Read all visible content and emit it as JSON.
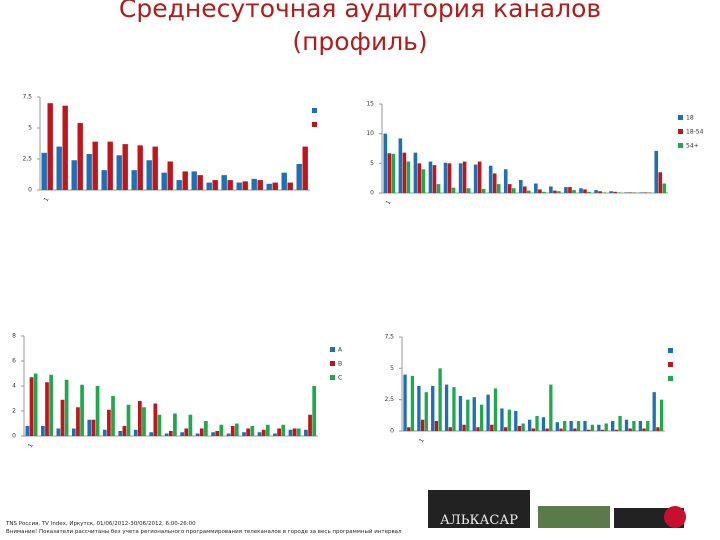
{
  "header": {
    "title": "Среднесуточная аудитория каналов",
    "subtitle": "(профиль)"
  },
  "chart_data": [
    {
      "type": "bar",
      "categories": [
        "1",
        null,
        null,
        null,
        null,
        null,
        null,
        null,
        null,
        null,
        null,
        null,
        null,
        null,
        null,
        null,
        null,
        null
      ],
      "series": [
        {
          "color": "#1f6fb5",
          "values": [
            3.0,
            3.5,
            2.4,
            2.9,
            1.6,
            2.8,
            1.6,
            2.4,
            1.4,
            0.8,
            1.5,
            0.6,
            1.2,
            0.6,
            0.9,
            0.5,
            1.4,
            2.1
          ]
        },
        {
          "color": "#c0161b",
          "values": [
            7.0,
            6.8,
            5.4,
            3.9,
            3.9,
            3.7,
            3.6,
            3.5,
            2.3,
            1.5,
            1.2,
            0.8,
            0.8,
            0.7,
            0.8,
            0.6,
            0.6,
            3.5
          ]
        }
      ],
      "ylim": [
        0,
        7.5
      ],
      "yticks": [
        0,
        {
          "value": 2.5,
          "label": "2,5"
        },
        5,
        {
          "value": 7.5,
          "label": "7,5"
        }
      ]
    },
    {
      "type": "bar",
      "categories": [
        "1",
        null,
        null,
        null,
        null,
        null,
        null,
        null,
        null,
        null,
        null,
        null,
        null,
        null,
        null,
        null,
        null,
        null,
        null
      ],
      "series": [
        {
          "name": "18",
          "color": "#1f6fb5",
          "values": [
            10,
            9.2,
            6.8,
            5.3,
            5.1,
            5.0,
            4.8,
            4.6,
            4.0,
            2.2,
            1.6,
            1.1,
            1.0,
            0.8,
            0.5,
            0.3,
            0.1,
            0.1,
            7.1
          ]
        },
        {
          "name": "18-54",
          "color": "#c0161b",
          "values": [
            6.7,
            6.8,
            5.0,
            4.7,
            5.0,
            5.3,
            5.3,
            3.3,
            1.5,
            1.1,
            0.6,
            0.4,
            1.0,
            0.6,
            0.3,
            0.2,
            0.1,
            0.1,
            3.5
          ]
        },
        {
          "name": "54+",
          "color": "#20a94c",
          "values": [
            6.6,
            5.3,
            4.0,
            1.5,
            0.9,
            0.8,
            0.7,
            1.5,
            0.8,
            0.4,
            0.2,
            0.3,
            0.5,
            0.2,
            0.1,
            0.1,
            0.1,
            0.1,
            1.6
          ]
        }
      ],
      "ylim": [
        0,
        15
      ],
      "yticks": [
        0,
        5,
        10,
        15
      ]
    },
    {
      "type": "bar",
      "categories": [
        "1",
        null,
        null,
        null,
        null,
        null,
        null,
        null,
        null,
        null,
        null,
        null,
        null,
        null,
        null,
        null,
        null,
        null,
        null
      ],
      "series": [
        {
          "name": "A",
          "color": "#1f6fb5",
          "values": [
            0.8,
            0.8,
            0.6,
            0.6,
            1.3,
            0.5,
            0.4,
            0.5,
            0.3,
            0.2,
            0.3,
            0.2,
            0.3,
            0.2,
            0.3,
            0.3,
            0.2,
            0.5,
            0.5
          ]
        },
        {
          "name": "B",
          "color": "#c0161b",
          "values": [
            4.7,
            4.3,
            2.9,
            2.3,
            1.3,
            2.1,
            0.8,
            2.8,
            2.6,
            0.4,
            0.6,
            0.6,
            0.4,
            0.8,
            0.6,
            0.5,
            0.6,
            0.6,
            1.7
          ]
        },
        {
          "name": "C",
          "color": "#20a94c",
          "values": [
            5.0,
            4.9,
            4.5,
            4.1,
            4.0,
            3.2,
            2.5,
            2.3,
            1.7,
            1.8,
            1.7,
            1.2,
            0.9,
            1.0,
            0.8,
            0.9,
            0.9,
            0.6,
            4.0
          ]
        }
      ],
      "ylim": [
        0,
        8
      ],
      "yticks": [
        0,
        2,
        4,
        6,
        8
      ]
    },
    {
      "type": "bar",
      "categories": [
        null,
        "1",
        null,
        null,
        null,
        null,
        null,
        null,
        null,
        null,
        null,
        null,
        null,
        null,
        null,
        null,
        null,
        null,
        null
      ],
      "series": [
        {
          "color": "#1f6fb5",
          "values": [
            4.5,
            3.6,
            3.6,
            3.7,
            2.8,
            2.7,
            2.9,
            1.8,
            1.6,
            0.9,
            1.1,
            0.7,
            0.8,
            0.8,
            0.5,
            0.8,
            0.9,
            0.8,
            3.1
          ]
        },
        {
          "color": "#c0161b",
          "values": [
            0.3,
            0.9,
            0.8,
            0.3,
            0.5,
            0.3,
            0.5,
            0.3,
            0.4,
            0.2,
            0.2,
            0.2,
            0.2,
            0.1,
            0.1,
            0.1,
            0.2,
            0.2,
            0.3
          ]
        },
        {
          "color": "#20a94c",
          "values": [
            4.4,
            3.1,
            5.0,
            3.5,
            2.5,
            2.1,
            3.4,
            1.7,
            0.6,
            1.2,
            3.7,
            0.8,
            0.8,
            0.5,
            0.6,
            1.2,
            0.8,
            0.8,
            2.5
          ]
        }
      ],
      "ylim": [
        0,
        7.5
      ],
      "yticks": [
        0,
        {
          "value": 2.5,
          "label": "2,5"
        },
        5,
        {
          "value": 7.5,
          "label": "7,5"
        }
      ]
    }
  ],
  "footer": {
    "source": "TNS Россия, TV Index, Иркутск, 01/06/2012-30/06/2012, 6:00-26:00",
    "note": "Внимание! Показатели рассчитаны без учета регионального программирования телеканалов в городе за весь программный интервал"
  },
  "logos": {
    "alkasar": "АЛЬКАСАР"
  }
}
